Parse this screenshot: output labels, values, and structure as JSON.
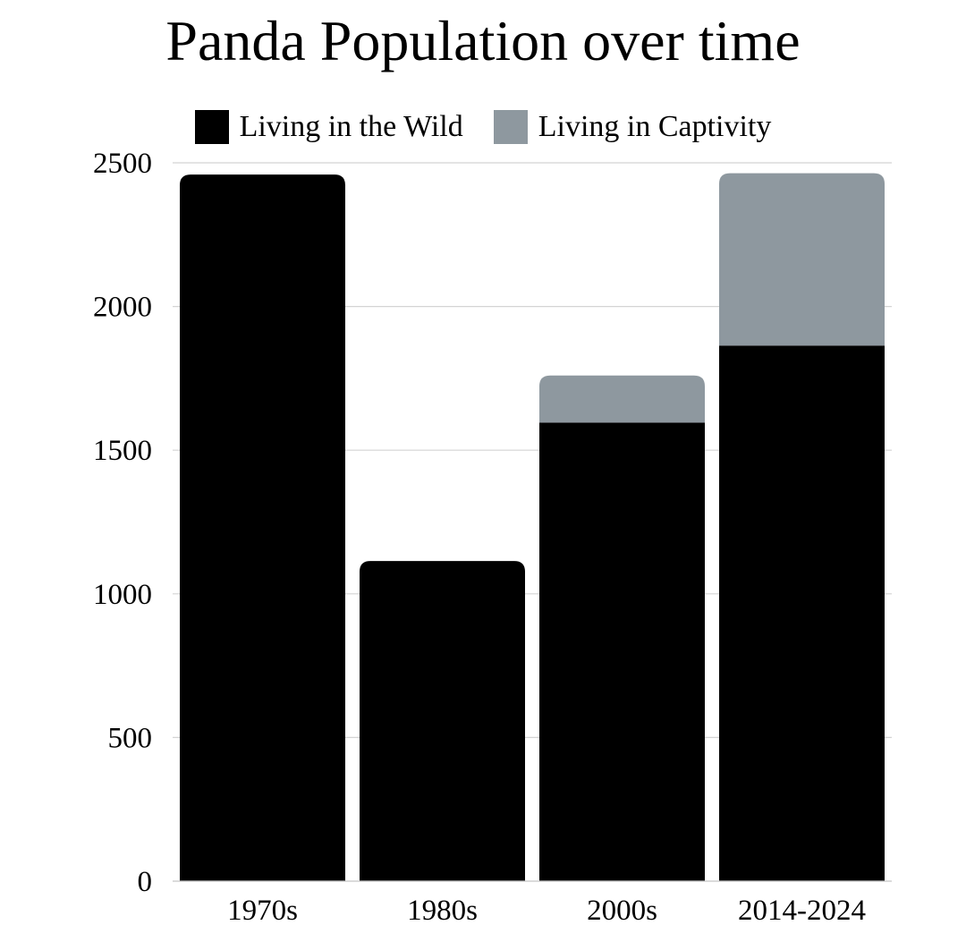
{
  "chart_data": {
    "type": "bar",
    "stacked": true,
    "title": "Panda Population over time",
    "xlabel": "",
    "ylabel": "",
    "categories": [
      "1970s",
      "1980s",
      "2000s",
      "2014-2024"
    ],
    "series": [
      {
        "name": "Living in the Wild",
        "color": "#000000",
        "values": [
          2459,
          1114,
          1596,
          1864
        ]
      },
      {
        "name": "Living in Captivity",
        "color": "#8e989f",
        "values": [
          0,
          0,
          164,
          600
        ]
      }
    ],
    "ylim": [
      0,
      2500
    ],
    "yticks": [
      "0",
      "500",
      "1000",
      "1500",
      "2000",
      "2500"
    ],
    "grid": true,
    "legend_position": "top"
  }
}
